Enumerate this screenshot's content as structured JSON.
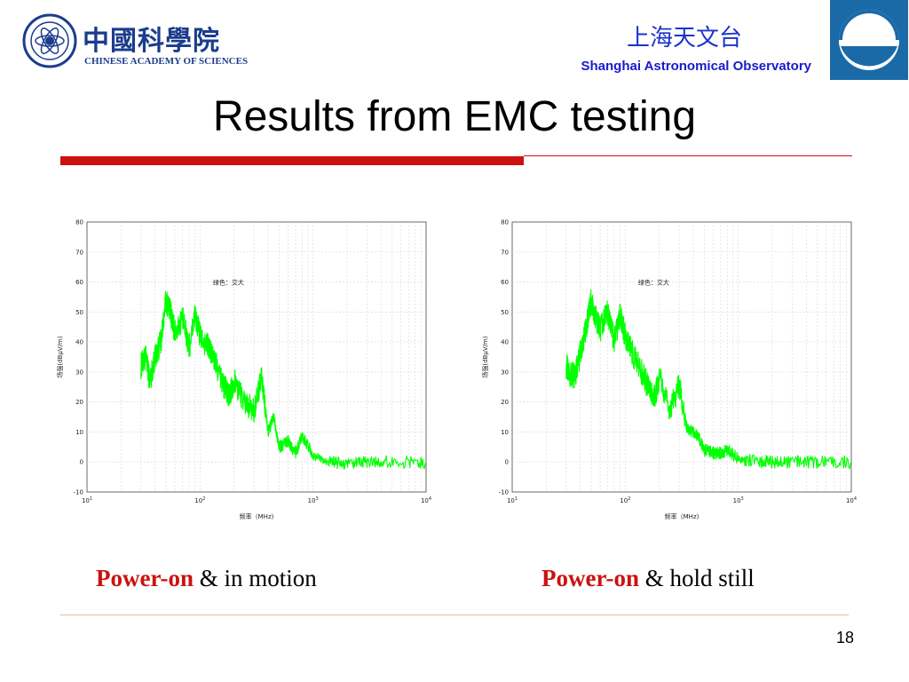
{
  "header": {
    "cas_name_cn": "中國科學院",
    "cas_name_en": "CHINESE ACADEMY OF SCIENCES",
    "sao_name_cn": "上海天文台",
    "sao_name_en": "Shanghai Astronomical Observatory",
    "brand_blue": "#1b3c8c",
    "sao_logo_icon": "observatory-logo-icon",
    "cas_logo_icon": "cas-seal-icon"
  },
  "title": "Results from EMC testing",
  "accent_color": "#cc1111",
  "plot_color": "#00ff00",
  "captions": [
    {
      "highlight": "Power-on",
      "rest": " & in motion"
    },
    {
      "highlight": "Power-on",
      "rest": " & hold still"
    }
  ],
  "page_number": "18",
  "chart_data": [
    {
      "type": "line",
      "xscale": "log",
      "xlim": [
        10,
        10000
      ],
      "ylim": [
        -10,
        80
      ],
      "x_tick_labels": [
        "10^1",
        "10^2",
        "10^3",
        "10^4"
      ],
      "y_tick_labels": [
        "80",
        "70",
        "60",
        "50",
        "40",
        "30",
        "20",
        "10",
        "0",
        "-10"
      ],
      "xlabel": "频率（MHz)",
      "ylabel": "场强(dBμV/m)",
      "annotation": "绿色：交大",
      "grid": true,
      "series": [
        {
          "color": "#00ff00",
          "x": [
            30,
            33,
            36,
            40,
            45,
            50,
            55,
            60,
            70,
            80,
            90,
            100,
            120,
            140,
            160,
            180,
            200,
            250,
            300,
            350,
            400,
            450,
            500,
            600,
            700,
            800,
            1000,
            1500,
            2000,
            3000,
            5000,
            10000
          ],
          "y": [
            32,
            35,
            27,
            35,
            40,
            54,
            50,
            43,
            48,
            38,
            49,
            42,
            38,
            32,
            26,
            22,
            27,
            20,
            17,
            28,
            10,
            15,
            5,
            7,
            3,
            9,
            2,
            0,
            -1,
            0,
            0,
            0
          ]
        }
      ]
    },
    {
      "type": "line",
      "xscale": "log",
      "xlim": [
        10,
        10000
      ],
      "ylim": [
        -10,
        80
      ],
      "x_tick_labels": [
        "10^1",
        "10^2",
        "10^3",
        "10^4"
      ],
      "y_tick_labels": [
        "80",
        "70",
        "60",
        "50",
        "40",
        "30",
        "20",
        "10",
        "0",
        "-10"
      ],
      "xlabel": "频率（MHz)",
      "ylabel": "场强(dBμV/m)",
      "annotation": "绿色：交大",
      "grid": true,
      "series": [
        {
          "color": "#00ff00",
          "x": [
            30,
            33,
            36,
            40,
            45,
            50,
            55,
            60,
            70,
            80,
            90,
            100,
            120,
            140,
            160,
            180,
            200,
            250,
            300,
            350,
            400,
            450,
            500,
            600,
            700,
            800,
            1000,
            1500,
            2000,
            3000,
            5000,
            10000
          ],
          "y": [
            32,
            29,
            29,
            36,
            44,
            54,
            48,
            44,
            50,
            40,
            49,
            42,
            35,
            30,
            25,
            21,
            28,
            17,
            26,
            11,
            10,
            8,
            4,
            3,
            3,
            4,
            1,
            0,
            0,
            0,
            0,
            0
          ]
        }
      ]
    }
  ]
}
